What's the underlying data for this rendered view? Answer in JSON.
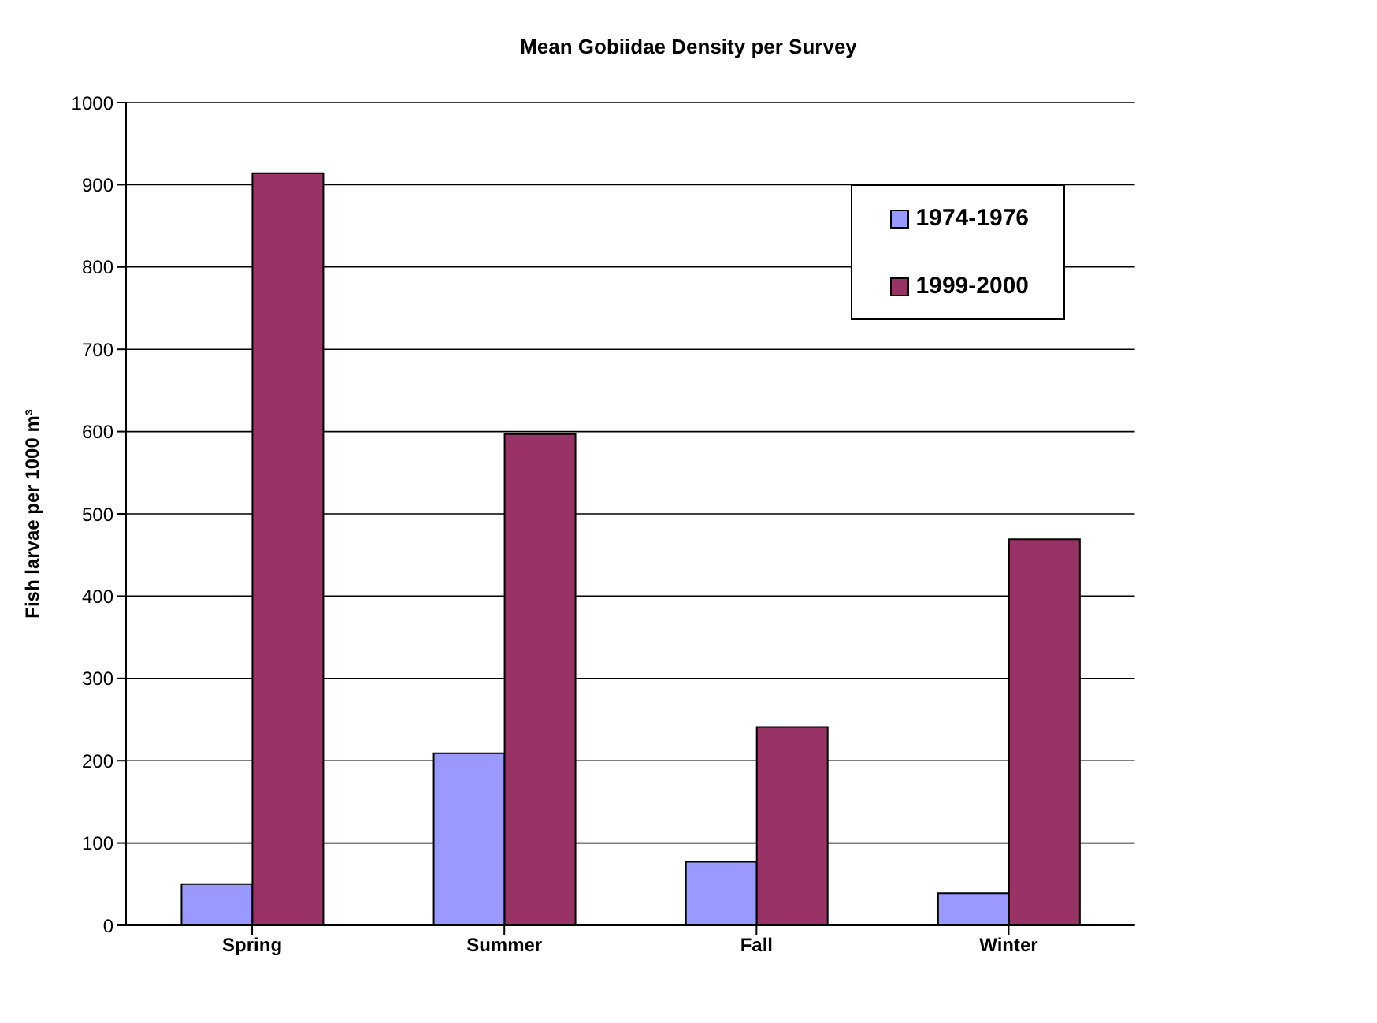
{
  "chart_data": {
    "type": "bar",
    "title": "Mean Gobiidae Density per Survey",
    "ylabel": "Fish larvae per 1000 m³",
    "categories": [
      "Spring",
      "Summer",
      "Fall",
      "Winter"
    ],
    "series": [
      {
        "name": "1974-1976",
        "color": "#9999ff",
        "values": [
          50,
          209,
          77,
          39
        ]
      },
      {
        "name": "1999-2000",
        "color": "#993366",
        "values": [
          914,
          597,
          241,
          469
        ]
      }
    ],
    "ylim": [
      0,
      1000
    ],
    "yticks": [
      0,
      100,
      200,
      300,
      400,
      500,
      600,
      700,
      800,
      900,
      1000
    ],
    "grid": "y",
    "legend": "top right"
  }
}
